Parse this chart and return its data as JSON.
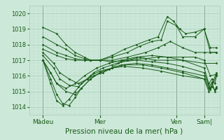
{
  "bg_color": "#cce8d8",
  "plot_bg_color": "#cce8d8",
  "grid_major_color": "#aaccbb",
  "grid_minor_color": "#bbddcc",
  "line_color": "#1a5c1a",
  "marker_color": "#1a5c1a",
  "xlabel": "Pression niveau de la mer( hPa )",
  "xlabel_fontsize": 7.5,
  "ytick_fontsize": 6.0,
  "xtick_fontsize": 6.5,
  "yticks": [
    1014,
    1015,
    1016,
    1017,
    1018,
    1019,
    1020
  ],
  "ylim": [
    1013.5,
    1020.5
  ],
  "xlim": [
    0.0,
    6.2
  ],
  "xtick_labels": [
    "Màdeu",
    "Mer",
    "Ven",
    "Sam|"
  ],
  "xtick_pos": [
    0.45,
    2.3,
    4.8,
    5.7
  ],
  "vlines": [
    0.45,
    2.3,
    4.8,
    5.7
  ],
  "series": [
    [
      0.45,
      1019.1,
      0.9,
      1018.7,
      1.2,
      1018.0,
      1.5,
      1017.5,
      1.8,
      1017.2,
      2.0,
      1017.0,
      2.3,
      1017.0,
      2.7,
      1017.3,
      3.1,
      1017.7,
      3.5,
      1018.0,
      3.9,
      1018.3,
      4.2,
      1018.5,
      4.5,
      1019.8,
      4.7,
      1019.5,
      4.9,
      1019.0,
      5.1,
      1018.7,
      5.4,
      1018.8,
      5.7,
      1019.0,
      5.9,
      1017.5,
      6.1,
      1017.5
    ],
    [
      0.45,
      1018.5,
      0.9,
      1018.0,
      1.2,
      1017.7,
      1.5,
      1017.3,
      1.8,
      1017.1,
      2.0,
      1017.0,
      2.3,
      1017.0,
      2.7,
      1017.2,
      3.2,
      1017.5,
      3.6,
      1017.9,
      4.0,
      1018.2,
      4.3,
      1018.3,
      4.5,
      1019.5,
      4.8,
      1019.2,
      5.0,
      1018.5,
      5.4,
      1018.5,
      5.7,
      1019.0,
      5.9,
      1017.8,
      6.1,
      1017.8
    ],
    [
      0.45,
      1018.0,
      0.9,
      1017.5,
      1.2,
      1017.3,
      1.5,
      1017.1,
      1.8,
      1017.0,
      2.0,
      1017.0,
      2.3,
      1017.0,
      2.7,
      1017.0,
      3.2,
      1017.2,
      3.8,
      1017.5,
      4.2,
      1017.8,
      4.4,
      1018.0,
      4.6,
      1018.2,
      5.0,
      1017.8,
      5.4,
      1017.5,
      5.7,
      1017.5,
      6.1,
      1017.5
    ],
    [
      0.45,
      1017.7,
      0.9,
      1017.3,
      1.2,
      1017.1,
      1.5,
      1017.0,
      1.8,
      1017.0,
      2.0,
      1017.0,
      2.3,
      1017.0,
      2.7,
      1016.9,
      3.2,
      1017.0,
      3.8,
      1017.1,
      4.2,
      1017.2,
      5.0,
      1017.2,
      5.4,
      1017.2,
      5.7,
      1017.0,
      5.9,
      1016.0,
      6.1,
      1016.1
    ],
    [
      0.45,
      1017.5,
      0.8,
      1016.8,
      1.0,
      1016.2,
      1.3,
      1015.8,
      1.6,
      1015.5,
      1.9,
      1015.8,
      2.1,
      1016.0,
      2.4,
      1016.2,
      2.6,
      1016.4,
      2.9,
      1016.8,
      3.2,
      1017.0,
      3.6,
      1017.2,
      4.1,
      1017.0,
      4.5,
      1017.0,
      5.0,
      1017.0,
      5.7,
      1016.8,
      6.1,
      1016.8
    ],
    [
      0.45,
      1017.3,
      0.8,
      1016.5,
      1.0,
      1015.8,
      1.3,
      1015.4,
      1.6,
      1015.3,
      1.9,
      1015.8,
      2.1,
      1016.2,
      2.4,
      1016.5,
      2.7,
      1016.7,
      3.0,
      1016.9,
      3.5,
      1017.0,
      4.0,
      1016.9,
      4.5,
      1016.8,
      5.0,
      1016.6,
      5.7,
      1016.2,
      5.9,
      1015.2,
      6.1,
      1016.2
    ],
    [
      0.45,
      1017.0,
      0.7,
      1016.2,
      0.9,
      1015.5,
      1.2,
      1015.0,
      1.5,
      1014.8,
      1.7,
      1015.2,
      2.0,
      1015.8,
      2.3,
      1016.2,
      2.7,
      1016.5,
      3.0,
      1016.7,
      3.5,
      1016.8,
      4.0,
      1016.7,
      4.5,
      1016.5,
      5.0,
      1016.3,
      5.7,
      1016.0,
      5.9,
      1015.1,
      6.1,
      1016.0
    ],
    [
      0.45,
      1017.0,
      0.7,
      1015.8,
      0.9,
      1014.8,
      1.1,
      1014.2,
      1.3,
      1014.1,
      1.5,
      1014.6,
      1.7,
      1015.2,
      2.0,
      1015.8,
      2.3,
      1016.2,
      2.7,
      1016.5,
      3.1,
      1016.7,
      3.7,
      1016.7,
      4.3,
      1016.5,
      5.0,
      1016.2,
      5.7,
      1015.8,
      5.85,
      1015.2,
      5.95,
      1015.6,
      6.05,
      1015.0,
      6.1,
      1015.2
    ],
    [
      0.45,
      1017.0,
      0.7,
      1015.5,
      0.9,
      1014.4,
      1.1,
      1014.1,
      1.3,
      1014.5,
      1.5,
      1015.0,
      1.7,
      1015.5,
      2.0,
      1016.0,
      2.3,
      1016.3,
      2.7,
      1016.5,
      3.1,
      1016.6,
      3.7,
      1016.5,
      4.3,
      1016.3,
      5.0,
      1016.0,
      5.7,
      1015.8,
      5.85,
      1015.0,
      5.95,
      1015.3,
      6.05,
      1015.1,
      6.1,
      1015.3
    ],
    [
      0.45,
      1017.0,
      0.7,
      1016.2,
      0.9,
      1015.5,
      1.2,
      1015.2,
      1.5,
      1015.5,
      1.8,
      1016.0,
      2.2,
      1016.5,
      2.6,
      1016.8,
      3.0,
      1017.0,
      3.5,
      1017.2,
      4.0,
      1017.3,
      4.5,
      1017.2,
      5.0,
      1017.0,
      5.7,
      1016.5,
      5.85,
      1015.5,
      5.95,
      1015.8,
      6.05,
      1015.5,
      6.1,
      1016.0
    ]
  ]
}
